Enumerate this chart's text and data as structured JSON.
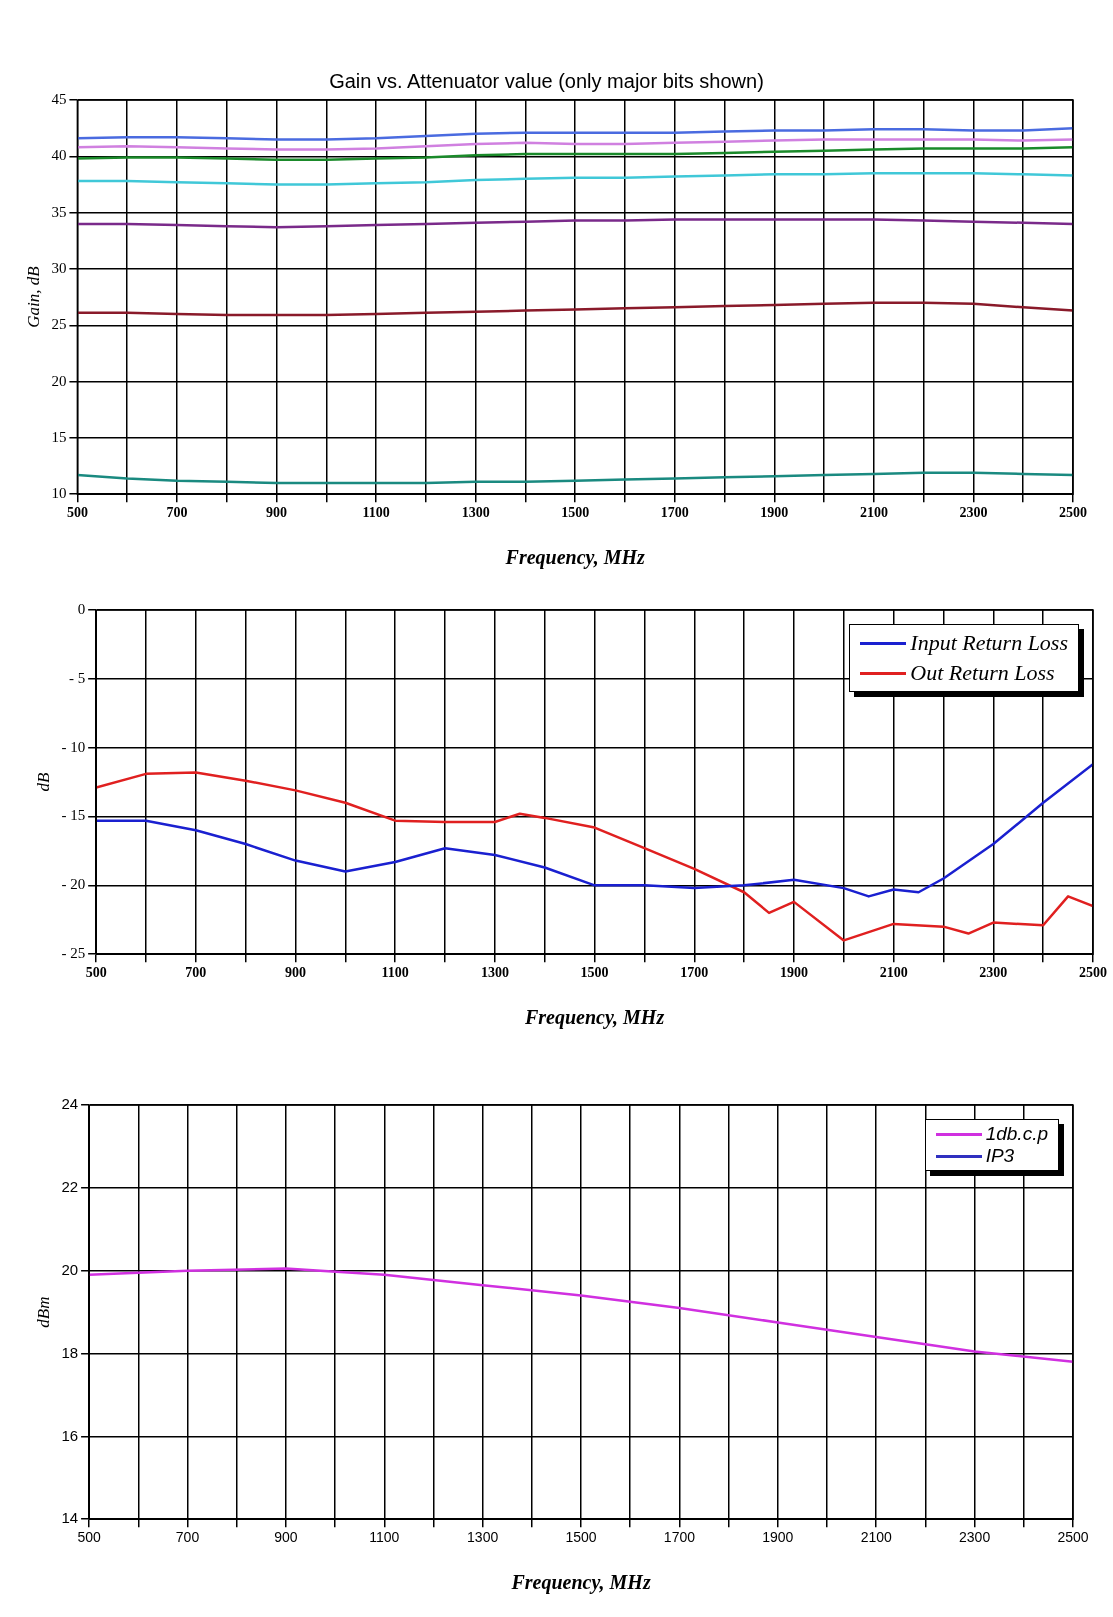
{
  "chart_data": [
    {
      "type": "line",
      "title": "Gain vs. Attenuator value (only major bits shown)",
      "xlabel": "Frequency, MHz",
      "ylabel": "Gain, dB",
      "x": [
        500,
        600,
        700,
        800,
        900,
        1000,
        1100,
        1200,
        1300,
        1400,
        1500,
        1600,
        1700,
        1800,
        1900,
        2000,
        2100,
        2200,
        2300,
        2400,
        2500
      ],
      "xlim": [
        500,
        2500
      ],
      "ylim": [
        10,
        45
      ],
      "xticks": [
        500,
        {
          "value": 600,
          "label": null
        },
        700,
        {
          "value": 800,
          "label": null
        },
        900,
        {
          "value": 1000,
          "label": null
        },
        1100,
        {
          "value": 1200,
          "label": null
        },
        1300,
        {
          "value": 1400,
          "label": null
        },
        1500,
        {
          "value": 1600,
          "label": null
        },
        1700,
        {
          "value": 1800,
          "label": null
        },
        1900,
        {
          "value": 2000,
          "label": null
        },
        2100,
        {
          "value": 2200,
          "label": null
        },
        2300,
        {
          "value": 2400,
          "label": null
        },
        2500
      ],
      "yticks": [
        10,
        15,
        20,
        25,
        30,
        35,
        40,
        45
      ],
      "grid": true,
      "legend": false,
      "marker": "none",
      "line_style": "solid",
      "series": [
        {
          "color": "#4a6be0",
          "values": [
            41.6,
            41.7,
            41.7,
            41.6,
            41.5,
            41.5,
            41.6,
            41.8,
            42.0,
            42.1,
            42.1,
            42.1,
            42.1,
            42.2,
            42.3,
            42.3,
            42.4,
            42.4,
            42.3,
            42.3,
            42.5
          ]
        },
        {
          "color": "#d080e0",
          "values": [
            40.8,
            40.9,
            40.8,
            40.7,
            40.6,
            40.6,
            40.7,
            40.9,
            41.1,
            41.2,
            41.1,
            41.1,
            41.2,
            41.3,
            41.4,
            41.5,
            41.5,
            41.5,
            41.5,
            41.4,
            41.5
          ]
        },
        {
          "color": "#1a8a2a",
          "values": [
            39.8,
            39.9,
            39.9,
            39.8,
            39.7,
            39.7,
            39.8,
            39.9,
            40.1,
            40.2,
            40.2,
            40.2,
            40.2,
            40.3,
            40.4,
            40.5,
            40.6,
            40.7,
            40.7,
            40.7,
            40.8
          ]
        },
        {
          "color": "#40c8d8",
          "values": [
            37.8,
            37.8,
            37.7,
            37.6,
            37.5,
            37.5,
            37.6,
            37.7,
            37.9,
            38.0,
            38.1,
            38.1,
            38.2,
            38.3,
            38.4,
            38.4,
            38.5,
            38.5,
            38.5,
            38.4,
            38.3
          ]
        },
        {
          "color": "#7a2a8a",
          "values": [
            34.0,
            34.0,
            33.9,
            33.8,
            33.7,
            33.8,
            33.9,
            34.0,
            34.1,
            34.2,
            34.3,
            34.3,
            34.4,
            34.4,
            34.4,
            34.4,
            34.4,
            34.3,
            34.2,
            34.1,
            34.0
          ]
        },
        {
          "color": "#8a1a2a",
          "values": [
            26.1,
            26.1,
            26.0,
            25.9,
            25.9,
            25.9,
            26.0,
            26.1,
            26.2,
            26.3,
            26.4,
            26.5,
            26.6,
            26.7,
            26.8,
            26.9,
            27.0,
            27.0,
            26.9,
            26.6,
            26.3
          ]
        },
        {
          "color": "#1a8a80",
          "values": [
            11.7,
            11.4,
            11.2,
            11.1,
            11.0,
            11.0,
            11.0,
            11.0,
            11.1,
            11.1,
            11.2,
            11.3,
            11.4,
            11.5,
            11.6,
            11.7,
            11.8,
            11.9,
            11.9,
            11.8,
            11.7
          ]
        }
      ]
    },
    {
      "type": "line",
      "xlabel": "Frequency, MHz",
      "ylabel": "dB",
      "xlim": [
        500,
        2500
      ],
      "ylim": [
        -25,
        0
      ],
      "xticks": [
        500,
        {
          "value": 600,
          "label": null
        },
        700,
        {
          "value": 800,
          "label": null
        },
        900,
        {
          "value": 1000,
          "label": null
        },
        1100,
        {
          "value": 1200,
          "label": null
        },
        1300,
        {
          "value": 1400,
          "label": null
        },
        1500,
        {
          "value": 1600,
          "label": null
        },
        1700,
        {
          "value": 1800,
          "label": null
        },
        1900,
        {
          "value": 2000,
          "label": null
        },
        2100,
        {
          "value": 2200,
          "label": null
        },
        2300,
        {
          "value": 2400,
          "label": null
        },
        2500
      ],
      "yticks": [
        {
          "value": -25,
          "label": "- 25"
        },
        {
          "value": -20,
          "label": "- 20"
        },
        {
          "value": -15,
          "label": "- 15"
        },
        {
          "value": -10,
          "label": "- 10"
        },
        {
          "value": -5,
          "label": "- 5"
        },
        0
      ],
      "grid": true,
      "legend": "top right",
      "marker": "none",
      "line_style": "solid",
      "series": [
        {
          "name": "Input Return Loss",
          "color": "#1a20d0",
          "x": [
            500,
            600,
            700,
            800,
            900,
            1000,
            1100,
            1200,
            1300,
            1400,
            1500,
            1600,
            1700,
            1800,
            1900,
            2000,
            2050,
            2100,
            2150,
            2200,
            2300,
            2400,
            2500
          ],
          "values": [
            -15.3,
            -15.3,
            -16.0,
            -17.0,
            -18.2,
            -19.0,
            -18.3,
            -17.3,
            -17.8,
            -18.7,
            -20.0,
            -20.0,
            -20.2,
            -20.0,
            -19.6,
            -20.2,
            -20.8,
            -20.3,
            -20.5,
            -19.5,
            -17.0,
            -14.0,
            -11.2
          ]
        },
        {
          "name": "Out Return Loss",
          "color": "#e02020",
          "x": [
            500,
            600,
            700,
            800,
            900,
            1000,
            1100,
            1200,
            1300,
            1350,
            1400,
            1500,
            1600,
            1700,
            1800,
            1850,
            1900,
            2000,
            2100,
            2200,
            2250,
            2300,
            2400,
            2450,
            2500
          ],
          "values": [
            -12.9,
            -11.9,
            -11.8,
            -12.4,
            -13.1,
            -14.0,
            -15.3,
            -15.4,
            -15.4,
            -14.8,
            -15.1,
            -15.8,
            -17.3,
            -18.8,
            -20.5,
            -22.0,
            -21.2,
            -24.0,
            -22.8,
            -23.0,
            -23.5,
            -22.7,
            -22.9,
            -20.8,
            -21.5
          ]
        }
      ]
    },
    {
      "type": "line",
      "xlabel": "Frequency, MHz",
      "ylabel": "dBm",
      "x": [
        500,
        700,
        900,
        1100,
        1300,
        1500,
        1700,
        1900,
        2100,
        2300,
        2500
      ],
      "xlim": [
        500,
        2500
      ],
      "ylim": [
        14,
        24
      ],
      "xticks": [
        500,
        {
          "value": 600,
          "label": null
        },
        700,
        {
          "value": 800,
          "label": null
        },
        900,
        {
          "value": 1000,
          "label": null
        },
        1100,
        {
          "value": 1200,
          "label": null
        },
        1300,
        {
          "value": 1400,
          "label": null
        },
        1500,
        {
          "value": 1600,
          "label": null
        },
        1700,
        {
          "value": 1800,
          "label": null
        },
        1900,
        {
          "value": 2000,
          "label": null
        },
        2100,
        {
          "value": 2200,
          "label": null
        },
        2300,
        {
          "value": 2400,
          "label": null
        },
        2500
      ],
      "yticks": [
        14,
        16,
        18,
        20,
        22,
        24
      ],
      "grid": true,
      "legend": "top right",
      "marker": "none",
      "line_style": "solid",
      "series": [
        {
          "name": "1db.c.p",
          "color": "#d030e0",
          "values": [
            19.9,
            20.0,
            20.05,
            19.9,
            19.65,
            19.4,
            19.1,
            18.75,
            18.4,
            18.05,
            17.8
          ]
        },
        {
          "name": "IP3",
          "color": "#3030c0",
          "values": [
            null,
            null,
            null,
            null,
            null,
            null,
            null,
            null,
            null,
            null,
            null
          ]
        }
      ]
    }
  ]
}
